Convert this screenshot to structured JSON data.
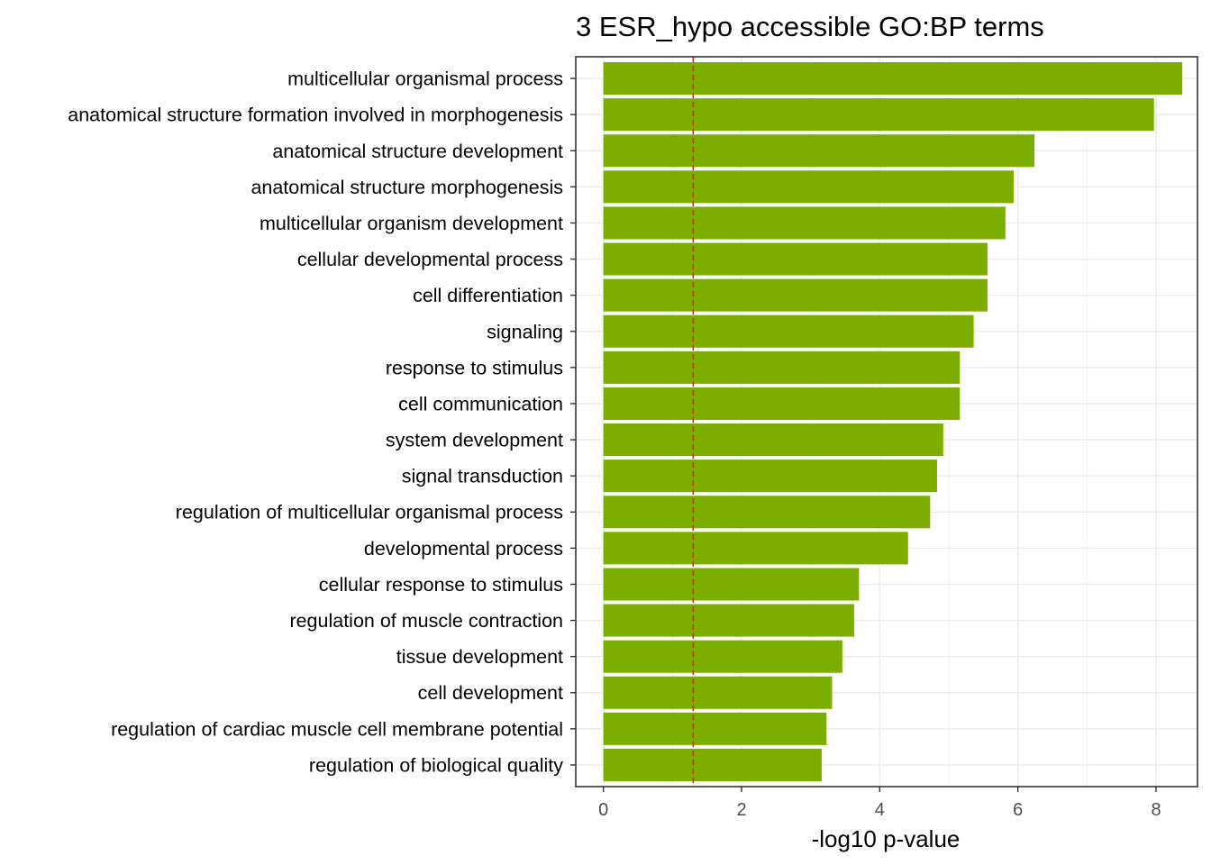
{
  "chart_data": {
    "type": "bar",
    "orientation": "horizontal",
    "title": "3 ESR_hypo accessible GO:BP terms",
    "xlabel": "-log10 p-value",
    "ylabel": "",
    "xlim": [
      -0.4,
      8.6
    ],
    "xticks": [
      0,
      2,
      4,
      6,
      8
    ],
    "grid": true,
    "bar_color": "#7CAE00",
    "reference_line": {
      "x": 1.3,
      "color": "#E41A1C",
      "style": "dashed"
    },
    "categories": [
      "multicellular organismal process",
      "anatomical structure formation involved in morphogenesis",
      "anatomical structure development",
      "anatomical structure morphogenesis",
      "multicellular organism development",
      "cellular developmental process",
      "cell differentiation",
      "signaling",
      "response to stimulus",
      "cell communication",
      "system development",
      "signal transduction",
      "regulation of multicellular organismal process",
      "developmental process",
      "cellular response to stimulus",
      "regulation of muscle contraction",
      "tissue development",
      "cell development",
      "regulation of cardiac muscle cell membrane potential",
      "regulation of biological quality"
    ],
    "values": [
      8.38,
      7.97,
      6.24,
      5.94,
      5.82,
      5.56,
      5.56,
      5.36,
      5.16,
      5.16,
      4.92,
      4.83,
      4.73,
      4.41,
      3.7,
      3.63,
      3.46,
      3.31,
      3.23,
      3.16
    ]
  }
}
